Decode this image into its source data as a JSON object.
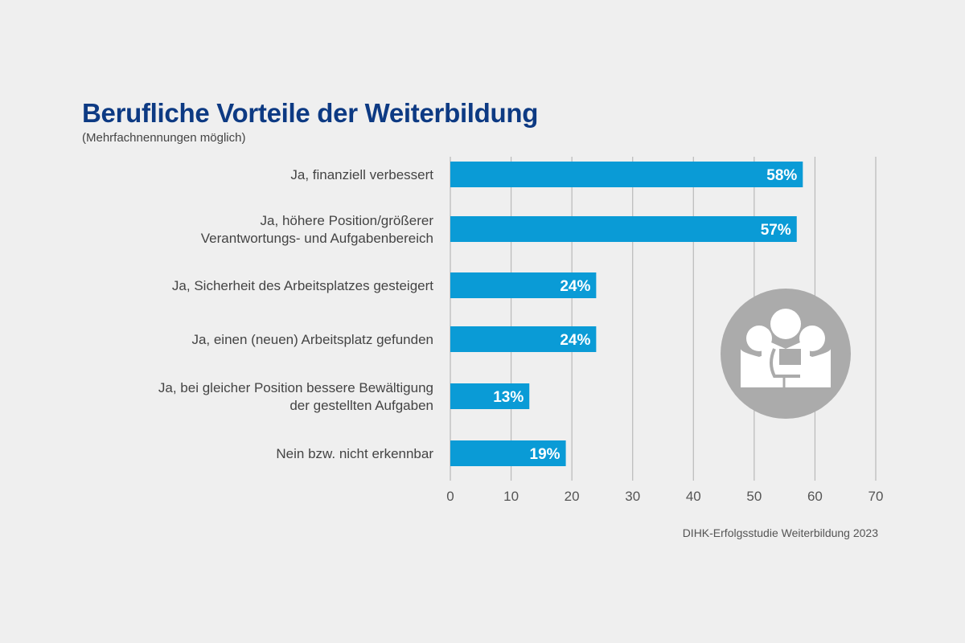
{
  "chart_data": {
    "type": "bar",
    "orientation": "horizontal",
    "title": "Berufliche Vorteile der Weiterbildung",
    "subtitle": "(Mehrfachnennungen möglich)",
    "categories": [
      [
        "Ja, finanziell verbessert"
      ],
      [
        "Ja, höhere Position/größerer",
        "Verantwortungs- und Aufgabenbereich"
      ],
      [
        "Ja, Sicherheit des Arbeitsplatzes gesteigert"
      ],
      [
        "Ja, einen (neuen) Arbeitsplatz gefunden"
      ],
      [
        "Ja, bei gleicher Position bessere Bewältigung",
        "der gestellten Aufgaben"
      ],
      [
        "Nein bzw. nicht erkennbar"
      ]
    ],
    "values": [
      58,
      57,
      24,
      24,
      13,
      19
    ],
    "value_labels": [
      "58%",
      "57%",
      "24%",
      "24%",
      "13%",
      "19%"
    ],
    "xlabel": "",
    "ylabel": "",
    "xlim": [
      0,
      70
    ],
    "xticks": [
      0,
      10,
      20,
      30,
      40,
      50,
      60,
      70
    ],
    "grid": true,
    "bar_color": "#0a9bd6",
    "source": "DIHK-Erfolgsstudie Weiterbildung 2023",
    "icon": "people-group-icon"
  }
}
